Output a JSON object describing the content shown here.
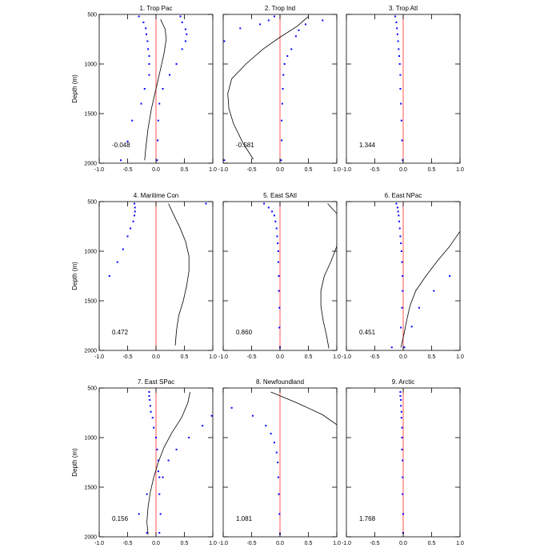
{
  "chart_data": {
    "type": "line",
    "ylabel": "Depth (m)",
    "xlim": [
      -1.0,
      1.0
    ],
    "ylim": [
      2000,
      500
    ],
    "y_reversed": true,
    "x_ticks": [
      "-1.0",
      "-0.5",
      "0.0",
      "0.5",
      "1.0"
    ],
    "y_ticks": [
      "500",
      "1000",
      "1500",
      "2000"
    ],
    "x_tick_values": [
      -1.0,
      -0.5,
      0.0,
      0.5,
      1.0
    ],
    "y_tick_values": [
      500,
      1000,
      1500,
      2000
    ],
    "zero_line_color": "#ff5555",
    "line_color": "#000000",
    "dot_color": "#0000ff",
    "panels": [
      {
        "title": "1. Trop Pac",
        "value_label": "-0.048",
        "curve": [
          [
            0.08,
            550
          ],
          [
            0.16,
            650
          ],
          [
            0.18,
            750
          ],
          [
            0.14,
            900
          ],
          [
            0.08,
            1050
          ],
          [
            0.0,
            1250
          ],
          [
            -0.08,
            1450
          ],
          [
            -0.14,
            1650
          ],
          [
            -0.18,
            1850
          ],
          [
            -0.2,
            1970
          ]
        ],
        "dots": [
          [
            -0.3,
            520
          ],
          [
            -0.22,
            580
          ],
          [
            -0.18,
            640
          ],
          [
            -0.17,
            700
          ],
          [
            -0.15,
            770
          ],
          [
            -0.14,
            850
          ],
          [
            -0.12,
            920
          ],
          [
            -0.12,
            1000
          ],
          [
            -0.12,
            1110
          ],
          [
            -0.2,
            1250
          ],
          [
            -0.26,
            1400
          ],
          [
            -0.42,
            1570
          ],
          [
            -0.5,
            1780
          ],
          [
            -0.62,
            1970
          ],
          [
            0.43,
            520
          ],
          [
            0.46,
            580
          ],
          [
            0.52,
            650
          ],
          [
            0.54,
            700
          ],
          [
            0.52,
            770
          ],
          [
            0.46,
            850
          ],
          [
            0.36,
            1000
          ],
          [
            0.24,
            1110
          ],
          [
            0.12,
            1250
          ],
          [
            0.06,
            1400
          ],
          [
            0.04,
            1570
          ],
          [
            0.03,
            1770
          ],
          [
            0.02,
            1970
          ]
        ]
      },
      {
        "title": "2. Trop Ind",
        "value_label": "-0.581",
        "curve": [
          [
            0.5,
            520
          ],
          [
            0.3,
            620
          ],
          [
            0.0,
            730
          ],
          [
            -0.3,
            850
          ],
          [
            -0.6,
            1000
          ],
          [
            -0.85,
            1150
          ],
          [
            -0.92,
            1300
          ],
          [
            -0.9,
            1450
          ],
          [
            -0.82,
            1600
          ],
          [
            -0.65,
            1800
          ],
          [
            -0.47,
            1960
          ]
        ],
        "dots": [
          [
            -0.1,
            520
          ],
          [
            -0.2,
            560
          ],
          [
            -0.35,
            600
          ],
          [
            -0.7,
            640
          ],
          [
            -0.98,
            770
          ],
          [
            -0.98,
            1970
          ],
          [
            0.75,
            560
          ],
          [
            0.45,
            600
          ],
          [
            0.33,
            660
          ],
          [
            0.28,
            720
          ],
          [
            0.2,
            850
          ],
          [
            0.13,
            920
          ],
          [
            0.08,
            1000
          ],
          [
            0.06,
            1110
          ],
          [
            0.05,
            1250
          ],
          [
            0.04,
            1400
          ],
          [
            0.03,
            1570
          ],
          [
            0.03,
            1770
          ],
          [
            0.02,
            1970
          ]
        ]
      },
      {
        "title": "3. Trop Atl",
        "value_label": "1.344",
        "curve": [],
        "dots": [
          [
            -0.14,
            520
          ],
          [
            -0.12,
            580
          ],
          [
            -0.11,
            640
          ],
          [
            -0.1,
            700
          ],
          [
            -0.09,
            770
          ],
          [
            -0.08,
            850
          ],
          [
            -0.07,
            920
          ],
          [
            -0.06,
            1000
          ],
          [
            -0.05,
            1110
          ],
          [
            -0.05,
            1250
          ],
          [
            -0.04,
            1400
          ],
          [
            -0.03,
            1570
          ],
          [
            -0.02,
            1770
          ],
          [
            -0.01,
            1970
          ]
        ]
      },
      {
        "title": "4. Maritime Con",
        "value_label": "0.472",
        "curve": [
          [
            0.22,
            520
          ],
          [
            0.3,
            620
          ],
          [
            0.42,
            760
          ],
          [
            0.52,
            900
          ],
          [
            0.58,
            1050
          ],
          [
            0.58,
            1200
          ],
          [
            0.54,
            1350
          ],
          [
            0.48,
            1500
          ],
          [
            0.4,
            1650
          ],
          [
            0.36,
            1800
          ],
          [
            0.34,
            1950
          ]
        ],
        "dots": [
          [
            0.88,
            520
          ],
          [
            -0.38,
            520
          ],
          [
            -0.37,
            560
          ],
          [
            -0.37,
            600
          ],
          [
            -0.38,
            640
          ],
          [
            -0.4,
            700
          ],
          [
            -0.45,
            770
          ],
          [
            -0.5,
            850
          ],
          [
            -0.58,
            980
          ],
          [
            -0.68,
            1110
          ],
          [
            -0.82,
            1250
          ]
        ]
      },
      {
        "title": "5. East SAtl",
        "value_label": "0.860",
        "curve": [
          [
            0.84,
            520
          ],
          [
            0.9,
            560
          ],
          [
            1.0,
            620
          ],
          [
            1.02,
            750
          ],
          [
            1.0,
            950
          ],
          [
            0.9,
            1100
          ],
          [
            0.78,
            1250
          ],
          [
            0.72,
            1400
          ],
          [
            0.72,
            1550
          ],
          [
            0.76,
            1700
          ],
          [
            0.82,
            1850
          ],
          [
            0.86,
            1980
          ]
        ],
        "dots": [
          [
            -0.28,
            520
          ],
          [
            -0.2,
            560
          ],
          [
            -0.14,
            600
          ],
          [
            -0.1,
            640
          ],
          [
            -0.08,
            700
          ],
          [
            -0.06,
            770
          ],
          [
            -0.05,
            850
          ],
          [
            -0.04,
            920
          ],
          [
            -0.03,
            1000
          ],
          [
            -0.03,
            1110
          ],
          [
            -0.02,
            1250
          ],
          [
            -0.02,
            1400
          ],
          [
            -0.01,
            1570
          ],
          [
            -0.01,
            1770
          ],
          [
            0.0,
            1970
          ]
        ]
      },
      {
        "title": "6. East NPac",
        "value_label": "0.451",
        "curve": [
          [
            1.0,
            800
          ],
          [
            0.82,
            950
          ],
          [
            0.6,
            1100
          ],
          [
            0.4,
            1250
          ],
          [
            0.22,
            1400
          ],
          [
            0.12,
            1550
          ],
          [
            0.06,
            1700
          ],
          [
            0.02,
            1820
          ],
          [
            -0.04,
            1970
          ]
        ],
        "dots": [
          [
            -0.12,
            520
          ],
          [
            -0.1,
            560
          ],
          [
            -0.09,
            600
          ],
          [
            -0.08,
            640
          ],
          [
            -0.07,
            700
          ],
          [
            -0.06,
            770
          ],
          [
            -0.05,
            850
          ],
          [
            -0.04,
            920
          ],
          [
            -0.03,
            1000
          ],
          [
            -0.02,
            1110
          ],
          [
            -0.01,
            1250
          ],
          [
            -0.01,
            1400
          ],
          [
            -0.02,
            1570
          ],
          [
            -0.04,
            1770
          ],
          [
            -0.2,
            1970
          ],
          [
            0.02,
            1970
          ],
          [
            0.15,
            1760
          ],
          [
            0.28,
            1570
          ],
          [
            0.54,
            1400
          ],
          [
            0.82,
            1250
          ]
        ]
      },
      {
        "title": "7. East SPac",
        "value_label": "0.156",
        "curve": [
          [
            0.6,
            540
          ],
          [
            0.56,
            650
          ],
          [
            0.45,
            800
          ],
          [
            0.28,
            950
          ],
          [
            0.14,
            1100
          ],
          [
            0.04,
            1250
          ],
          [
            -0.04,
            1400
          ],
          [
            -0.1,
            1550
          ],
          [
            -0.14,
            1700
          ],
          [
            -0.16,
            1850
          ],
          [
            -0.14,
            1980
          ]
        ],
        "dots": [
          [
            -0.12,
            540
          ],
          [
            -0.12,
            580
          ],
          [
            -0.11,
            620
          ],
          [
            -0.1,
            680
          ],
          [
            -0.09,
            740
          ],
          [
            -0.06,
            800
          ],
          [
            -0.04,
            900
          ],
          [
            0.0,
            1000
          ],
          [
            0.02,
            1120
          ],
          [
            0.04,
            1230
          ],
          [
            0.04,
            1340
          ],
          [
            0.06,
            1400
          ],
          [
            -0.16,
            1570
          ],
          [
            -0.3,
            1770
          ],
          [
            -0.16,
            1960
          ],
          [
            0.98,
            780
          ],
          [
            0.82,
            880
          ],
          [
            0.58,
            1000
          ],
          [
            0.36,
            1120
          ],
          [
            0.22,
            1230
          ],
          [
            0.12,
            1400
          ],
          [
            0.06,
            1570
          ],
          [
            0.08,
            1770
          ],
          [
            0.06,
            1960
          ]
        ]
      },
      {
        "title": "8. Newfoundland",
        "value_label": "1.081",
        "curve": [
          [
            -0.16,
            540
          ],
          [
            0.3,
            650
          ],
          [
            0.75,
            770
          ],
          [
            1.0,
            870
          ]
        ],
        "dots": [
          [
            -0.85,
            700
          ],
          [
            -0.48,
            780
          ],
          [
            -0.25,
            880
          ],
          [
            -0.16,
            960
          ],
          [
            -0.1,
            1050
          ],
          [
            -0.06,
            1150
          ],
          [
            -0.04,
            1250
          ],
          [
            -0.03,
            1400
          ],
          [
            -0.02,
            1570
          ],
          [
            -0.01,
            1770
          ],
          [
            0.0,
            1970
          ]
        ]
      },
      {
        "title": "9. Arctic",
        "value_label": "1.768",
        "curve": [],
        "dots": [
          [
            -0.05,
            540
          ],
          [
            -0.05,
            580
          ],
          [
            -0.04,
            620
          ],
          [
            -0.04,
            680
          ],
          [
            -0.03,
            740
          ],
          [
            -0.03,
            800
          ],
          [
            -0.02,
            900
          ],
          [
            -0.02,
            1000
          ],
          [
            -0.02,
            1120
          ],
          [
            -0.01,
            1230
          ],
          [
            -0.01,
            1400
          ],
          [
            -0.01,
            1570
          ],
          [
            0.0,
            1770
          ],
          [
            0.0,
            1960
          ]
        ]
      }
    ]
  }
}
